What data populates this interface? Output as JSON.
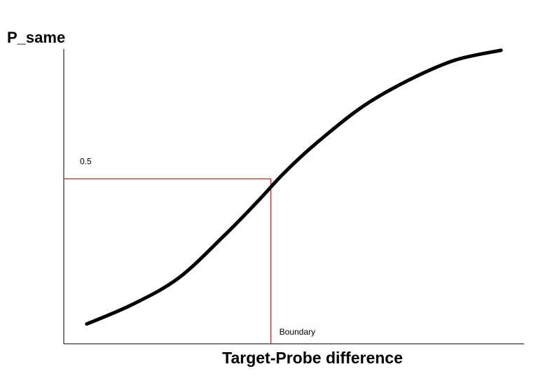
{
  "chart_data": {
    "type": "line",
    "ylabel": "P_same",
    "xlabel": "Target-Probe difference",
    "series": [
      {
        "x": [
          0.05,
          0.15,
          0.25,
          0.35,
          0.42,
          0.48,
          0.55,
          0.65,
          0.75,
          0.85,
          0.95
        ],
        "y": [
          0.06,
          0.12,
          0.2,
          0.33,
          0.43,
          0.52,
          0.61,
          0.72,
          0.8,
          0.86,
          0.89
        ]
      }
    ],
    "reference": {
      "y_level": 0.5,
      "y_level_label": "0.5",
      "x_boundary": 0.45,
      "x_boundary_label": "Boundary"
    },
    "xlim": [
      0,
      1
    ],
    "ylim": [
      0,
      1
    ],
    "grid": false,
    "colors": {
      "curve": "#000000",
      "reference": "#cc0000",
      "axes": "#000000"
    }
  }
}
